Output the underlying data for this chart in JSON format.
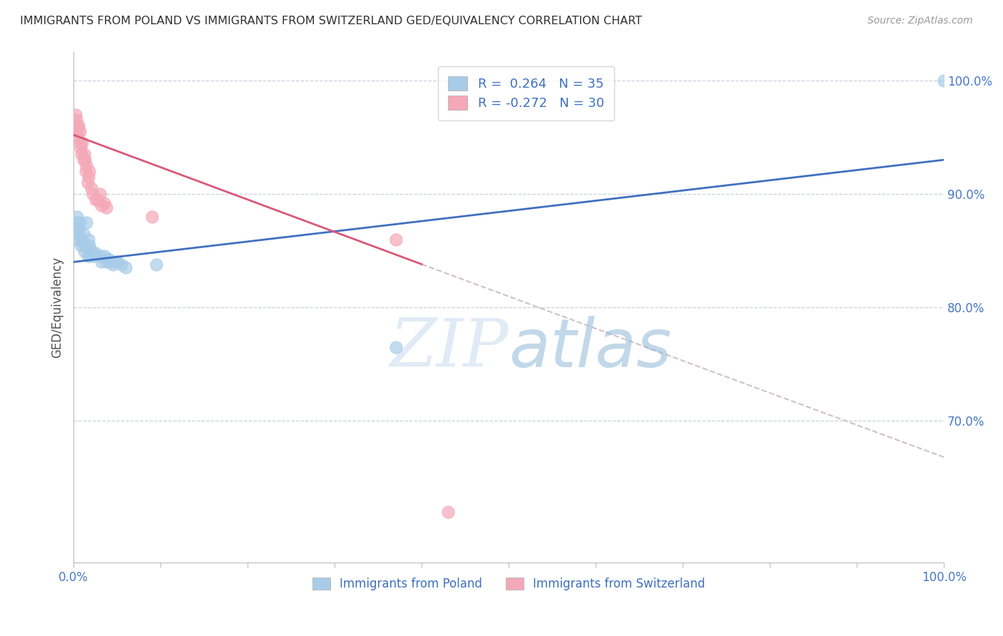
{
  "title": "IMMIGRANTS FROM POLAND VS IMMIGRANTS FROM SWITZERLAND GED/EQUIVALENCY CORRELATION CHART",
  "source": "Source: ZipAtlas.com",
  "ylabel": "GED/Equivalency",
  "ytick_labels": [
    "100.0%",
    "90.0%",
    "80.0%",
    "70.0%"
  ],
  "ytick_values": [
    1.0,
    0.9,
    0.8,
    0.7
  ],
  "legend_poland": "Immigrants from Poland",
  "legend_switzerland": "Immigrants from Switzerland",
  "r_poland": 0.264,
  "n_poland": 35,
  "r_switzerland": -0.272,
  "n_switzerland": 30,
  "blue_color": "#A8CCE8",
  "pink_color": "#F4A8B8",
  "blue_line_color": "#4070C0",
  "pink_line_color": "#D85878",
  "dashed_line_color": "#D0C0C8",
  "title_color": "#303030",
  "axis_label_color": "#4878C8",
  "legend_text_color": "#4070C0",
  "grid_color": "#C8D0DC",
  "background_color": "#FFFFFF",
  "poland_x": [
    0.003,
    0.004,
    0.004,
    0.005,
    0.006,
    0.006,
    0.007,
    0.008,
    0.009,
    0.01,
    0.011,
    0.012,
    0.013,
    0.015,
    0.016,
    0.017,
    0.018,
    0.019,
    0.02,
    0.022,
    0.025,
    0.03,
    0.032,
    0.035,
    0.038,
    0.04,
    0.042,
    0.045,
    0.048,
    0.05,
    0.055,
    0.06,
    0.095,
    0.37,
    1.0
  ],
  "poland_y": [
    0.875,
    0.88,
    0.87,
    0.86,
    0.87,
    0.865,
    0.875,
    0.855,
    0.86,
    0.858,
    0.865,
    0.85,
    0.855,
    0.875,
    0.845,
    0.86,
    0.855,
    0.845,
    0.85,
    0.845,
    0.848,
    0.845,
    0.84,
    0.845,
    0.84,
    0.843,
    0.84,
    0.838,
    0.84,
    0.84,
    0.838,
    0.835,
    0.838,
    0.765,
    1.0
  ],
  "switzerland_x": [
    0.002,
    0.003,
    0.004,
    0.005,
    0.005,
    0.006,
    0.007,
    0.007,
    0.008,
    0.009,
    0.01,
    0.011,
    0.012,
    0.013,
    0.014,
    0.015,
    0.016,
    0.017,
    0.018,
    0.02,
    0.022,
    0.025,
    0.028,
    0.03,
    0.032,
    0.035,
    0.038,
    0.09,
    0.37,
    0.43
  ],
  "switzerland_y": [
    0.97,
    0.965,
    0.96,
    0.955,
    0.95,
    0.96,
    0.945,
    0.955,
    0.94,
    0.935,
    0.945,
    0.93,
    0.935,
    0.93,
    0.92,
    0.925,
    0.91,
    0.915,
    0.92,
    0.905,
    0.9,
    0.895,
    0.895,
    0.9,
    0.89,
    0.892,
    0.888,
    0.88,
    0.86,
    0.62
  ],
  "watermark_zip": "ZIP",
  "watermark_atlas": "atlas",
  "xlim": [
    0.0,
    1.0
  ],
  "ylim": [
    0.575,
    1.025
  ],
  "poland_line_x0": 0.0,
  "poland_line_x1": 1.0,
  "poland_line_y0": 0.84,
  "poland_line_y1": 0.93,
  "switzerland_line_x0": 0.0,
  "switzerland_line_x1": 0.4,
  "switzerland_line_y0": 0.952,
  "switzerland_line_y1": 0.838,
  "dashed_line_x0": 0.4,
  "dashed_line_x1": 1.0,
  "dashed_line_y0": 0.838,
  "dashed_line_y1": 0.668
}
